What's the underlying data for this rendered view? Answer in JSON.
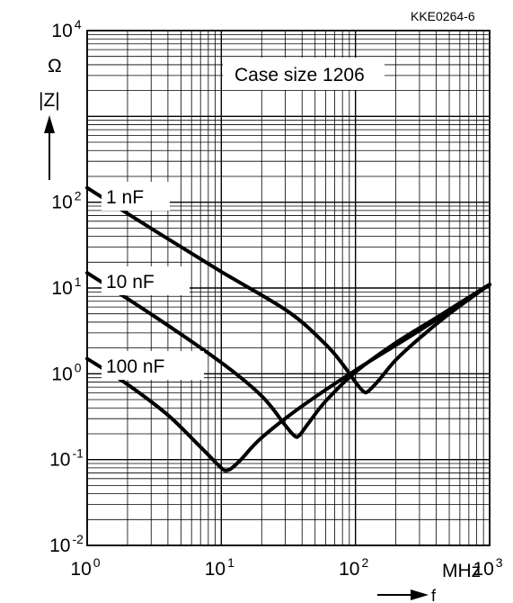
{
  "chart_data": {
    "type": "line",
    "title": "",
    "figure_id": "KKE0264-6",
    "annotation": "Case size 1206",
    "xlabel": "f",
    "xunit": "MHz",
    "ylabel": "|Z|",
    "yunit": "Ω",
    "xscale": "log",
    "yscale": "log",
    "xlim": [
      1,
      1000
    ],
    "ylim": [
      0.01,
      10000
    ],
    "grid": true,
    "x_ticks": [
      {
        "base": "10",
        "exp": "0",
        "value": 1
      },
      {
        "base": "10",
        "exp": "1",
        "value": 10
      },
      {
        "base": "10",
        "exp": "2",
        "value": 100
      },
      {
        "base": "10",
        "exp": "3",
        "value": 1000
      }
    ],
    "y_ticks": [
      {
        "base": "10",
        "exp": "-2",
        "value": 0.01
      },
      {
        "base": "10",
        "exp": "-1",
        "value": 0.1
      },
      {
        "base": "10",
        "exp": "0",
        "value": 1
      },
      {
        "base": "10",
        "exp": "1",
        "value": 10
      },
      {
        "base": "10",
        "exp": "2",
        "value": 100
      },
      {
        "base": "10",
        "exp": "4",
        "value": 10000
      }
    ],
    "series": [
      {
        "name": "1 nF",
        "x": [
          1,
          3.16,
          10,
          31.6,
          60,
          80,
          100,
          115,
          125,
          150,
          200,
          300,
          500,
          1000
        ],
        "y": [
          147,
          47,
          15.5,
          5.3,
          2.2,
          1.3,
          0.8,
          0.62,
          0.63,
          0.85,
          1.45,
          2.6,
          5.0,
          11
        ]
      },
      {
        "name": "10 nF",
        "x": [
          1,
          3.16,
          10,
          20,
          30,
          35,
          38,
          45,
          60,
          100,
          200,
          400,
          700,
          1000
        ],
        "y": [
          15,
          4.7,
          1.35,
          0.55,
          0.25,
          0.19,
          0.19,
          0.27,
          0.48,
          1.05,
          2.3,
          4.5,
          7.8,
          11
        ]
      },
      {
        "name": "100 nF",
        "x": [
          1,
          2,
          4,
          7,
          10,
          11,
          12,
          14,
          20,
          40,
          100,
          300,
          1000
        ],
        "y": [
          1.5,
          0.75,
          0.33,
          0.14,
          0.08,
          0.075,
          0.08,
          0.1,
          0.18,
          0.42,
          1.1,
          3.2,
          11
        ]
      }
    ]
  }
}
